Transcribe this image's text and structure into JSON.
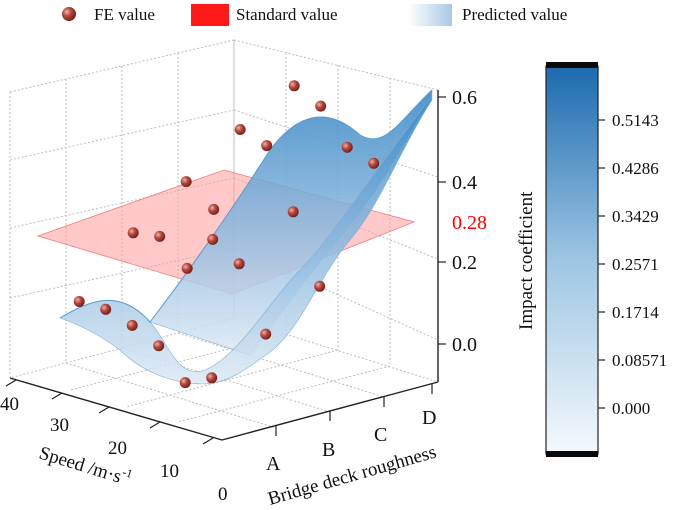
{
  "chart_data": {
    "type": "surface3d",
    "title": "",
    "legend": {
      "placement": "top",
      "items": [
        {
          "label": "FE value",
          "kind": "marker",
          "color": "#a8423c"
        },
        {
          "label": "Standard value",
          "kind": "plane",
          "color": "#ff1010"
        },
        {
          "label": "Predicted value",
          "kind": "surface",
          "color": "#b9d4ea"
        }
      ]
    },
    "x_axis": {
      "label": "Bridge deck roughness",
      "categories": [
        "A",
        "B",
        "C",
        "D"
      ]
    },
    "y_axis": {
      "label": "Speed /m·s",
      "label_sup": "-1",
      "ticks": [
        0,
        10,
        20,
        30,
        40
      ],
      "range": [
        0,
        40
      ]
    },
    "z_axis": {
      "label": "Impact coefficient",
      "ticks": [
        0.0,
        0.2,
        0.4,
        0.6
      ],
      "tick_labels": [
        "0.0",
        "0.2",
        "0.4",
        "0.6"
      ],
      "range": [
        -0.1,
        0.6
      ]
    },
    "standard_value": {
      "value": 0.28,
      "label": "0.28",
      "color": "#ff0000"
    },
    "colorbar": {
      "title": "Impact coefficient",
      "ticks": [
        "0.5143",
        "0.4286",
        "0.3429",
        "0.2571",
        "0.1714",
        "0.08571",
        "0.000"
      ],
      "min_color": "#f3f8fc",
      "max_color": "#1f6fb2"
    },
    "fe_points": [
      {
        "roughness": "A",
        "speed": 5,
        "value": 0.02
      },
      {
        "roughness": "A",
        "speed": 10,
        "value": -0.01
      },
      {
        "roughness": "A",
        "speed": 15,
        "value": 0.06
      },
      {
        "roughness": "A",
        "speed": 20,
        "value": 0.09
      },
      {
        "roughness": "A",
        "speed": 25,
        "value": 0.11
      },
      {
        "roughness": "A",
        "speed": 30,
        "value": 0.11
      },
      {
        "roughness": "B",
        "speed": 5,
        "value": 0.09
      },
      {
        "roughness": "B",
        "speed": 10,
        "value": 0.24
      },
      {
        "roughness": "B",
        "speed": 15,
        "value": 0.28
      },
      {
        "roughness": "B",
        "speed": 20,
        "value": 0.4
      },
      {
        "roughness": "B",
        "speed": 25,
        "value": 0.25
      },
      {
        "roughness": "B",
        "speed": 30,
        "value": 0.24
      },
      {
        "roughness": "C",
        "speed": 5,
        "value": 0.17
      },
      {
        "roughness": "C",
        "speed": 10,
        "value": 0.33
      },
      {
        "roughness": "C",
        "speed": 15,
        "value": 0.47
      },
      {
        "roughness": "C",
        "speed": 20,
        "value": 0.49
      },
      {
        "roughness": "C",
        "speed": 25,
        "value": 0.28
      },
      {
        "roughness": "C",
        "speed": 30,
        "value": 0.12
      },
      {
        "roughness": "D",
        "speed": 5,
        "value": 0.43
      },
      {
        "roughness": "D",
        "speed": 10,
        "value": 0.45
      },
      {
        "roughness": "D",
        "speed": 15,
        "value": 0.53
      },
      {
        "roughness": "D",
        "speed": 20,
        "value": 0.56
      }
    ]
  }
}
